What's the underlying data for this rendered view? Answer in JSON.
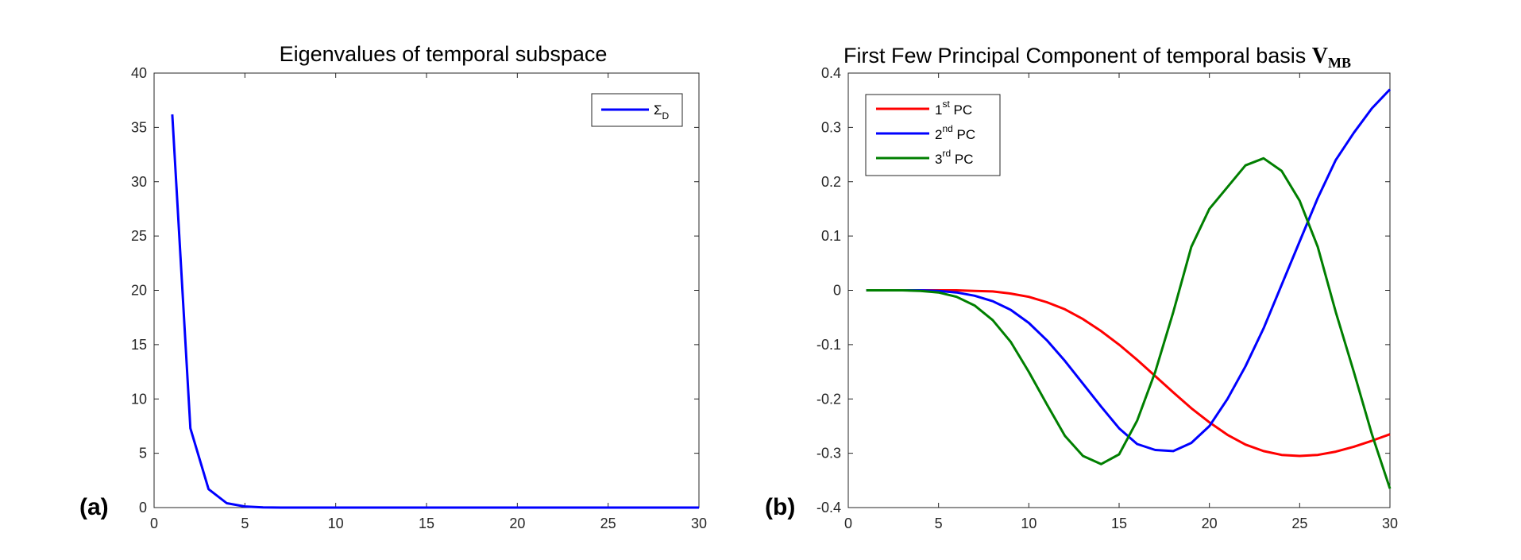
{
  "chart_data": [
    {
      "type": "line",
      "panel_label": "(a)",
      "title": "Eigenvalues of temporal subspace",
      "xlabel": "",
      "ylabel": "",
      "xlim": [
        0,
        30
      ],
      "ylim": [
        0,
        40
      ],
      "xticks": [
        0,
        5,
        10,
        15,
        20,
        25,
        30
      ],
      "yticks": [
        0,
        5,
        10,
        15,
        20,
        25,
        30,
        35,
        40
      ],
      "grid": false,
      "legend_position": "top-right",
      "series": [
        {
          "name": "Σ",
          "name_subscript": "D",
          "color": "#0000ff",
          "x": [
            1,
            2,
            3,
            4,
            5,
            6,
            7,
            8,
            9,
            10,
            11,
            12,
            13,
            14,
            15,
            16,
            17,
            18,
            19,
            20,
            21,
            22,
            23,
            24,
            25,
            26,
            27,
            28,
            29,
            30
          ],
          "y": [
            36.2,
            7.3,
            1.7,
            0.4,
            0.1,
            0.02,
            0,
            0,
            0,
            0,
            0,
            0,
            0,
            0,
            0,
            0,
            0,
            0,
            0,
            0,
            0,
            0,
            0,
            0,
            0,
            0,
            0,
            0,
            0,
            0
          ]
        }
      ]
    },
    {
      "type": "line",
      "panel_label": "(b)",
      "title": "First Few Principal Component of temporal basis ",
      "title_math_main": "V",
      "title_math_sub": "MB",
      "xlabel": "",
      "ylabel": "",
      "xlim": [
        0,
        30
      ],
      "ylim": [
        -0.4,
        0.4
      ],
      "xticks": [
        0,
        5,
        10,
        15,
        20,
        25,
        30
      ],
      "yticks": [
        -0.4,
        -0.3,
        -0.2,
        -0.1,
        0,
        0.1,
        0.2,
        0.3,
        0.4
      ],
      "grid": false,
      "legend_position": "top-left",
      "series": [
        {
          "name_num": "1",
          "name_sup": "st",
          "name_rest": " PC",
          "color": "#ff0000",
          "x": [
            1,
            2,
            3,
            4,
            5,
            6,
            7,
            8,
            9,
            10,
            11,
            12,
            13,
            14,
            15,
            16,
            17,
            18,
            19,
            20,
            21,
            22,
            23,
            24,
            25,
            26,
            27,
            28,
            29,
            30
          ],
          "y": [
            0,
            0,
            0,
            0,
            0,
            0,
            -0.001,
            -0.002,
            -0.006,
            -0.012,
            -0.022,
            -0.035,
            -0.053,
            -0.075,
            -0.1,
            -0.128,
            -0.158,
            -0.188,
            -0.217,
            -0.243,
            -0.266,
            -0.284,
            -0.296,
            -0.303,
            -0.305,
            -0.303,
            -0.297,
            -0.288,
            -0.277,
            -0.265
          ]
        },
        {
          "name_num": "2",
          "name_sup": "nd",
          "name_rest": " PC",
          "color": "#0000ff",
          "x": [
            1,
            2,
            3,
            4,
            5,
            6,
            7,
            8,
            9,
            10,
            11,
            12,
            13,
            14,
            15,
            16,
            17,
            18,
            19,
            20,
            21,
            22,
            23,
            24,
            25,
            26,
            27,
            28,
            29,
            30
          ],
          "y": [
            0,
            0,
            0,
            0,
            -0.001,
            -0.004,
            -0.01,
            -0.02,
            -0.036,
            -0.06,
            -0.092,
            -0.13,
            -0.172,
            -0.214,
            -0.254,
            -0.283,
            -0.294,
            -0.296,
            -0.281,
            -0.25,
            -0.2,
            -0.14,
            -0.07,
            0.01,
            0.09,
            0.17,
            0.24,
            0.29,
            0.335,
            0.37
          ]
        },
        {
          "name_num": "3",
          "name_sup": "rd",
          "name_rest": " PC",
          "color": "#007f00",
          "x": [
            1,
            2,
            3,
            4,
            5,
            6,
            7,
            8,
            9,
            10,
            11,
            12,
            13,
            14,
            15,
            16,
            17,
            18,
            19,
            20,
            21,
            22,
            23,
            24,
            25,
            26,
            27,
            28,
            29,
            30
          ],
          "y": [
            0,
            0,
            0,
            -0.001,
            -0.004,
            -0.012,
            -0.028,
            -0.055,
            -0.095,
            -0.15,
            -0.21,
            -0.268,
            -0.305,
            -0.32,
            -0.302,
            -0.24,
            -0.15,
            -0.04,
            0.08,
            0.15,
            0.19,
            0.23,
            0.243,
            0.22,
            0.165,
            0.08,
            -0.04,
            -0.15,
            -0.265,
            -0.365
          ]
        }
      ]
    }
  ]
}
